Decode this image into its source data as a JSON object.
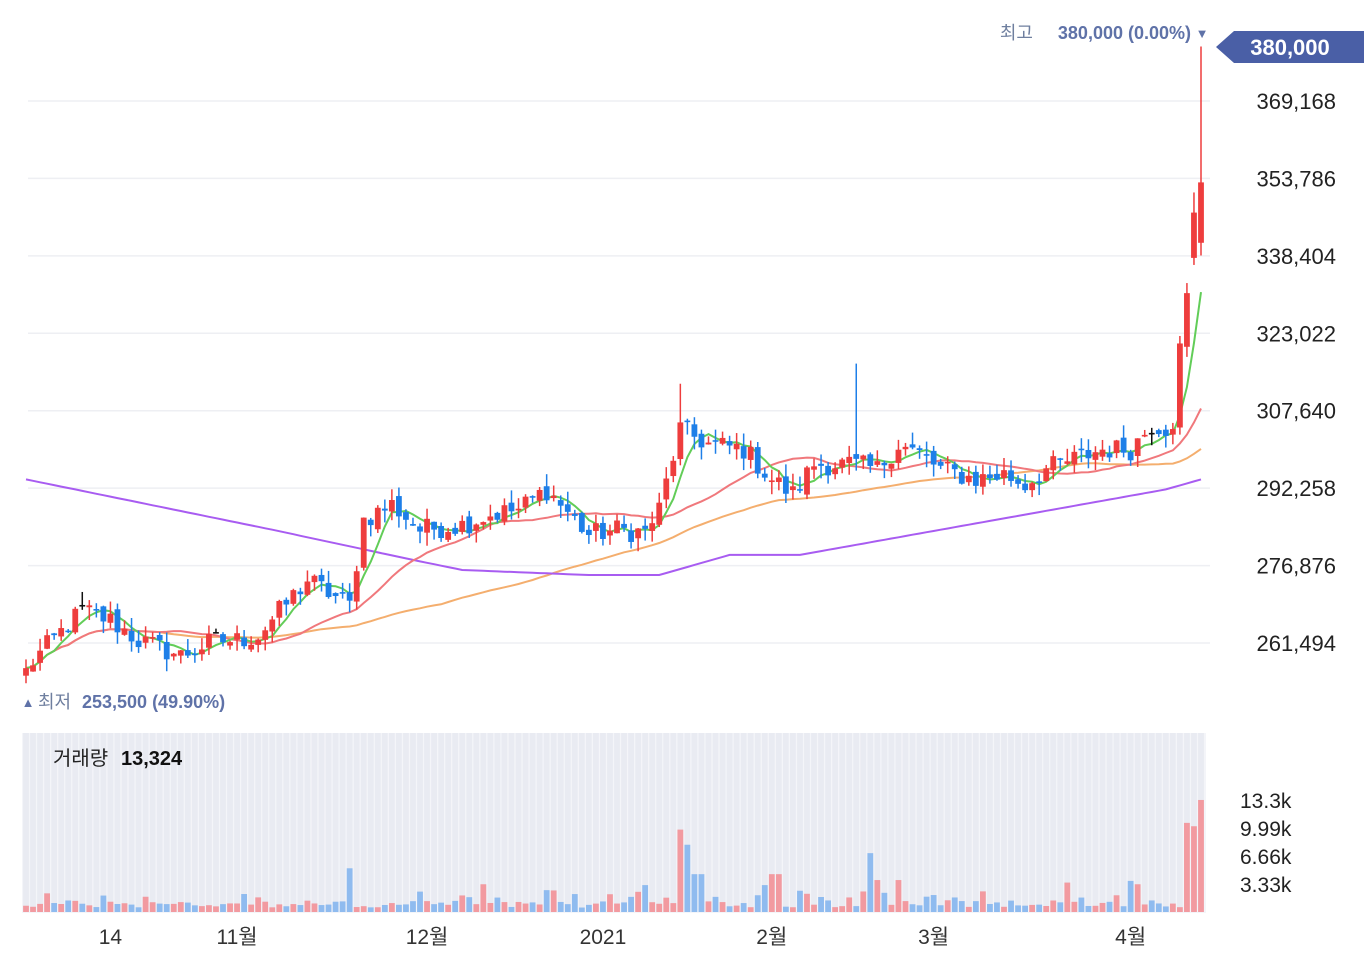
{
  "colors": {
    "up": "#ee3d3d",
    "down": "#1e7fe8",
    "flat": "#111111",
    "volUp": "#f29aa0",
    "volDown": "#8fbbef",
    "ma5": "#62cd58",
    "ma20": "#f0787c",
    "ma60": "#f4ae6e",
    "ma120": "#a85cf1",
    "badge": "#4a5fa6",
    "grid": "#eeeff3",
    "volbg": "#f4f5f9"
  },
  "chart_data": {
    "type": "candlestick",
    "price_axis": {
      "ticks": [
        "369,168",
        "353,786",
        "338,404",
        "323,022",
        "307,640",
        "292,258",
        "276,876",
        "261,494"
      ],
      "tick_values": [
        369168,
        353786,
        338404,
        323022,
        307640,
        292258,
        276876,
        261494
      ]
    },
    "x_ticks": [
      {
        "label": "14",
        "index": 12
      },
      {
        "label": "11월",
        "index": 30
      },
      {
        "label": "12월",
        "index": 57
      },
      {
        "label": "2021",
        "index": 82
      },
      {
        "label": "2월",
        "index": 106
      },
      {
        "label": "3월",
        "index": 129
      },
      {
        "label": "4월",
        "index": 157
      }
    ],
    "high_marker": {
      "label": "최고",
      "value": "380,000 (0.00%)",
      "arrow": "▼",
      "index": 167,
      "price": 380000
    },
    "low_marker": {
      "label": "최저",
      "value": "253,500 (49.90%)",
      "arrow": "▲",
      "index": 0,
      "price": 253500
    },
    "current_price": "380,000",
    "volume": {
      "title": "거래량",
      "current": "13,324",
      "ticks": [
        "13.3k",
        "9.99k",
        "6.66k",
        "3.33k"
      ],
      "tick_values": [
        13320,
        9990,
        6660,
        3330
      ]
    }
  }
}
